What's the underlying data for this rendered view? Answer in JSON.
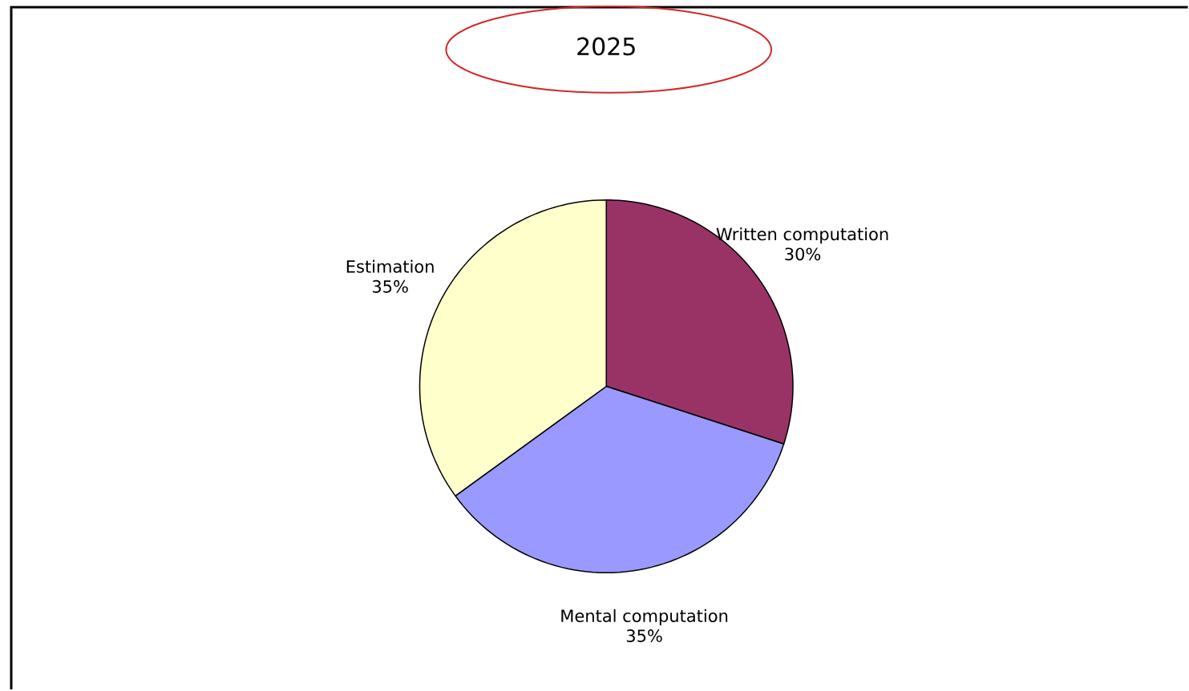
{
  "chart_data": {
    "type": "pie",
    "title": "2025",
    "categories": [
      "Written computation",
      "Mental computation",
      "Estimation"
    ],
    "values": [
      30,
      35,
      35
    ],
    "colors": [
      "#993366",
      "#9999ff",
      "#ffffcc"
    ],
    "value_labels": [
      "30%",
      "35%",
      "35%"
    ]
  }
}
